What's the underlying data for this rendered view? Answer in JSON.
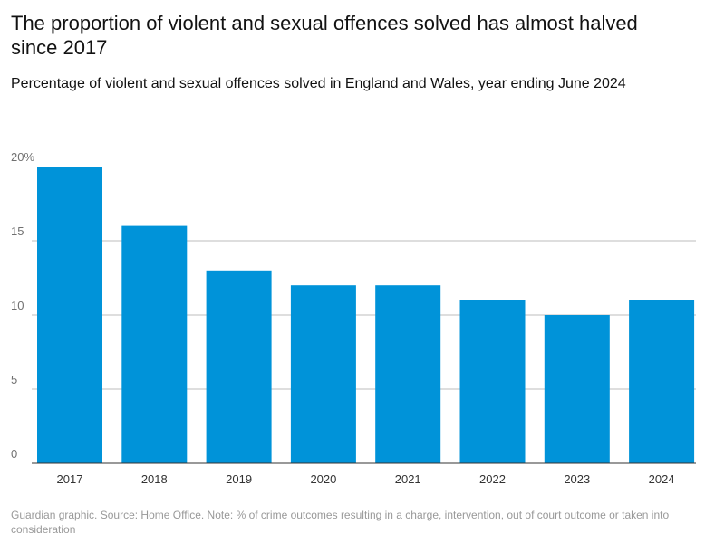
{
  "chart_data": {
    "type": "bar",
    "title": "The proportion of violent and sexual offences solved has almost halved since 2017",
    "subtitle": "Percentage of violent and sexual offences solved in England and Wales, year ending June 2024",
    "categories": [
      "2017",
      "2018",
      "2019",
      "2020",
      "2021",
      "2022",
      "2023",
      "2024"
    ],
    "values": [
      20,
      16,
      13,
      12,
      12,
      11,
      10,
      11
    ],
    "ylim": [
      0,
      20
    ],
    "yticks": [
      0,
      5,
      10,
      15,
      20
    ],
    "ytick_labels": [
      "0",
      "5",
      "10",
      "15",
      "20%"
    ],
    "grid": true,
    "bar_color": "#0093d9",
    "source": "Guardian graphic. Source: Home Office. Note: % of crime outcomes resulting in a charge, intervention, out of court outcome or taken into consideration"
  }
}
